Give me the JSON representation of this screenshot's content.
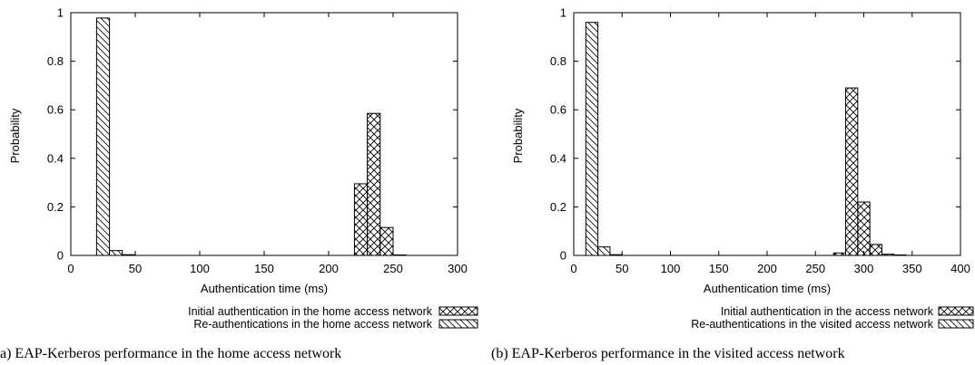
{
  "chart_data": [
    {
      "type": "bar",
      "caption": "a) EAP-Kerberos performance in the home access network",
      "xlabel": "Authentication time (ms)",
      "ylabel": "Probability",
      "xlim": [
        0,
        300
      ],
      "ylim": [
        0,
        1
      ],
      "xticks": [
        "0",
        "50",
        "100",
        "150",
        "200",
        "250",
        "300"
      ],
      "yticks": [
        "0",
        "0.2",
        "0.4",
        "0.6",
        "0.8",
        "1"
      ],
      "bin_width": 10,
      "legend_position": "bottom-right",
      "series": [
        {
          "name": "Initial authentication in the home access network",
          "pattern": "crosshatch",
          "x": [
            215,
            225,
            235,
            245,
            255,
            265
          ],
          "values": [
            0.0,
            0.295,
            0.585,
            0.115,
            0.002,
            0.0
          ]
        },
        {
          "name": "Re-authentications in the home access network",
          "pattern": "diagonal",
          "x": [
            15,
            25,
            35,
            45,
            55
          ],
          "values": [
            0.0,
            0.978,
            0.02,
            0.003,
            0.0
          ]
        }
      ]
    },
    {
      "type": "bar",
      "caption": "(b) EAP-Kerberos performance in the visited access network",
      "xlabel": "Authentication time (ms)",
      "ylabel": "Probability",
      "xlim": [
        0,
        400
      ],
      "ylim": [
        0,
        1
      ],
      "xticks": [
        "0",
        "50",
        "100",
        "150",
        "200",
        "250",
        "300",
        "350",
        "400"
      ],
      "yticks": [
        "0",
        "0.2",
        "0.4",
        "0.6",
        "0.8",
        "1"
      ],
      "bin_width": 12.5,
      "legend_position": "bottom-right",
      "series": [
        {
          "name": "Initial authentication in the access network",
          "pattern": "crosshatch",
          "x": [
            275,
            287.5,
            300,
            312.5,
            325,
            337.5,
            350
          ],
          "values": [
            0.01,
            0.69,
            0.22,
            0.045,
            0.005,
            0.002,
            0.0
          ]
        },
        {
          "name": "Re-authentications in the visited access network",
          "pattern": "diagonal",
          "x": [
            18.75,
            31.25,
            43.75
          ],
          "values": [
            0.96,
            0.035,
            0.003
          ]
        }
      ]
    }
  ]
}
